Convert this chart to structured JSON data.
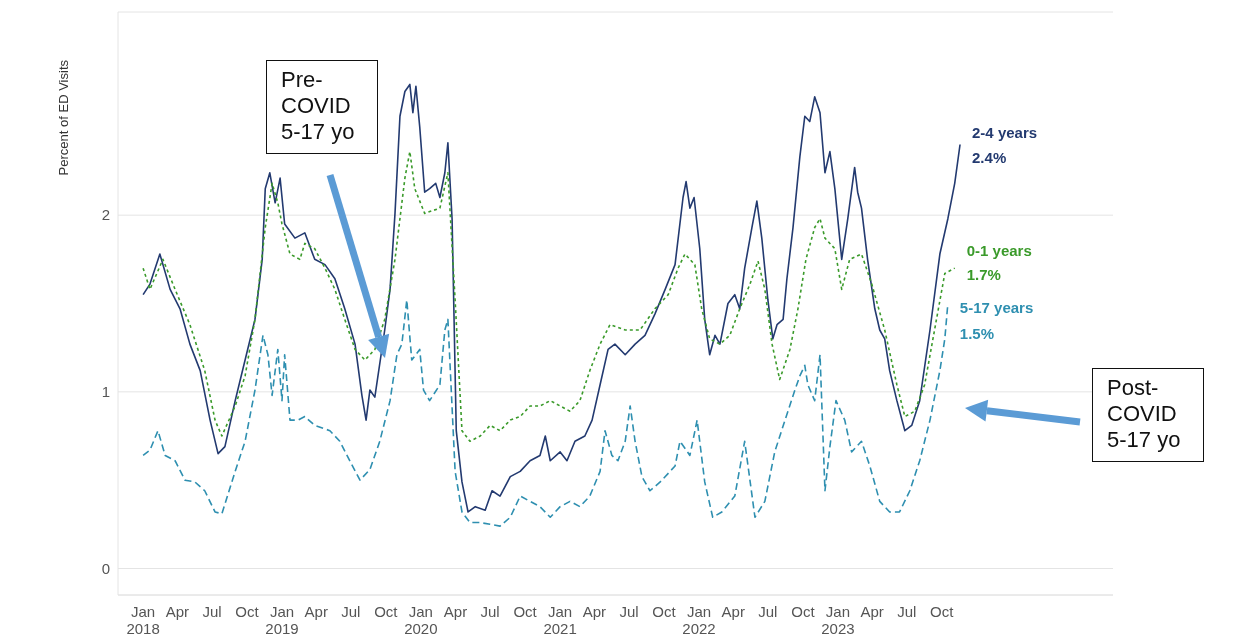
{
  "chart_data": {
    "type": "line",
    "ylabel": "Percent of ED Visits",
    "xlim": [
      "2017-10-27",
      "2024-12-24"
    ],
    "xticks": [
      {
        "value": "2018-01-01",
        "label": "Jan 2018"
      },
      {
        "value": "2018-04-01",
        "label": "Apr"
      },
      {
        "value": "2018-07-01",
        "label": "Jul"
      },
      {
        "value": "2018-10-01",
        "label": "Oct"
      },
      {
        "value": "2019-01-01",
        "label": "Jan 2019"
      },
      {
        "value": "2019-04-01",
        "label": "Apr"
      },
      {
        "value": "2019-07-01",
        "label": "Jul"
      },
      {
        "value": "2019-10-01",
        "label": "Oct"
      },
      {
        "value": "2020-01-01",
        "label": "Jan 2020"
      },
      {
        "value": "2020-04-01",
        "label": "Apr"
      },
      {
        "value": "2020-07-01",
        "label": "Jul"
      },
      {
        "value": "2020-10-01",
        "label": "Oct"
      },
      {
        "value": "2021-01-01",
        "label": "Jan 2021"
      },
      {
        "value": "2021-04-01",
        "label": "Apr"
      },
      {
        "value": "2021-07-01",
        "label": "Jul"
      },
      {
        "value": "2021-10-01",
        "label": "Oct"
      },
      {
        "value": "2022-01-01",
        "label": "Jan 2022"
      },
      {
        "value": "2022-04-01",
        "label": "Apr"
      },
      {
        "value": "2022-07-01",
        "label": "Jul"
      },
      {
        "value": "2022-10-01",
        "label": "Oct"
      },
      {
        "value": "2023-01-01",
        "label": "Jan 2023"
      },
      {
        "value": "2023-04-01",
        "label": "Apr"
      },
      {
        "value": "2023-07-01",
        "label": "Jul"
      },
      {
        "value": "2023-10-01",
        "label": "Oct"
      }
    ],
    "ylim": [
      -0.15,
      3.15
    ],
    "yticks": [
      0,
      1,
      2
    ],
    "grid": "y",
    "marker": "none",
    "series": [
      {
        "name": "2-4 years",
        "color": "#233a70",
        "line_style": "solid",
        "x": [
          "2018-01-01",
          "2018-01-19",
          "2018-02-14",
          "2018-03-13",
          "2018-04-08",
          "2018-05-04",
          "2018-05-31",
          "2018-06-26",
          "2018-07-17",
          "2018-08-04",
          "2018-08-31",
          "2018-09-26",
          "2018-10-22",
          "2018-11-10",
          "2018-11-18",
          "2018-11-30",
          "2018-12-14",
          "2018-12-27",
          "2019-01-08",
          "2019-02-04",
          "2019-03-02",
          "2019-03-28",
          "2019-04-24",
          "2019-05-20",
          "2019-06-15",
          "2019-07-12",
          "2019-07-30",
          "2019-08-10",
          "2019-08-20",
          "2019-09-02",
          "2019-09-28",
          "2019-10-12",
          "2019-10-25",
          "2019-11-07",
          "2019-11-20",
          "2019-12-03",
          "2019-12-11",
          "2019-12-19",
          "2019-12-29",
          "2020-01-11",
          "2020-01-24",
          "2020-02-09",
          "2020-02-20",
          "2020-03-04",
          "2020-03-12",
          "2020-03-23",
          "2020-04-03",
          "2020-04-18",
          "2020-05-04",
          "2020-05-23",
          "2020-06-18",
          "2020-07-06",
          "2020-07-27",
          "2020-08-23",
          "2020-09-18",
          "2020-10-14",
          "2020-11-09",
          "2020-11-23",
          "2020-12-06",
          "2021-01-01",
          "2021-01-19",
          "2021-02-09",
          "2021-03-07",
          "2021-03-26",
          "2021-04-16",
          "2021-05-07",
          "2021-05-25",
          "2021-06-21",
          "2021-07-17",
          "2021-08-12",
          "2021-09-07",
          "2021-10-04",
          "2021-10-30",
          "2021-11-20",
          "2021-11-28",
          "2021-12-08",
          "2021-12-19",
          "2022-01-03",
          "2022-01-16",
          "2022-01-29",
          "2022-02-12",
          "2022-02-25",
          "2022-03-18",
          "2022-04-05",
          "2022-04-18",
          "2022-05-01",
          "2022-05-20",
          "2022-06-02",
          "2022-06-15",
          "2022-07-01",
          "2022-07-14",
          "2022-07-25",
          "2022-08-10",
          "2022-08-20",
          "2022-09-05",
          "2022-09-23",
          "2022-10-06",
          "2022-10-19",
          "2022-11-01",
          "2022-11-15",
          "2022-11-28",
          "2022-12-11",
          "2022-12-24",
          "2023-01-11",
          "2023-01-27",
          "2023-02-14",
          "2023-02-22",
          "2023-03-04",
          "2023-03-20",
          "2023-04-08",
          "2023-04-21",
          "2023-05-04",
          "2023-05-17",
          "2023-06-05",
          "2023-06-26",
          "2023-07-14",
          "2023-08-04",
          "2023-08-31",
          "2023-09-26",
          "2023-10-17",
          "2023-11-04",
          "2023-11-18"
        ],
        "values": [
          1.55,
          1.61,
          1.78,
          1.58,
          1.47,
          1.27,
          1.12,
          0.84,
          0.65,
          0.69,
          0.95,
          1.18,
          1.41,
          1.75,
          2.15,
          2.24,
          2.07,
          2.21,
          1.95,
          1.87,
          1.9,
          1.75,
          1.72,
          1.64,
          1.47,
          1.27,
          0.98,
          0.84,
          1.01,
          0.97,
          1.35,
          1.58,
          2.01,
          2.56,
          2.7,
          2.74,
          2.58,
          2.73,
          2.5,
          2.13,
          2.15,
          2.18,
          2.1,
          2.24,
          2.41,
          1.98,
          0.78,
          0.49,
          0.32,
          0.35,
          0.33,
          0.44,
          0.41,
          0.52,
          0.55,
          0.61,
          0.64,
          0.75,
          0.61,
          0.66,
          0.61,
          0.72,
          0.75,
          0.84,
          1.04,
          1.24,
          1.27,
          1.21,
          1.27,
          1.32,
          1.44,
          1.58,
          1.72,
          2.1,
          2.19,
          2.04,
          2.1,
          1.81,
          1.41,
          1.21,
          1.32,
          1.27,
          1.5,
          1.55,
          1.47,
          1.7,
          1.93,
          2.08,
          1.87,
          1.52,
          1.3,
          1.38,
          1.41,
          1.64,
          1.93,
          2.33,
          2.56,
          2.53,
          2.67,
          2.58,
          2.24,
          2.36,
          2.15,
          1.75,
          1.98,
          2.27,
          2.13,
          2.04,
          1.75,
          1.47,
          1.35,
          1.3,
          1.12,
          0.95,
          0.78,
          0.81,
          0.95,
          1.35,
          1.78,
          1.98,
          2.18,
          2.4
        ]
      },
      {
        "name": "0-1 years",
        "color": "#3a9a2a",
        "line_style": "dotted",
        "x": [
          "2018-01-01",
          "2018-01-19",
          "2018-02-22",
          "2018-03-26",
          "2018-05-04",
          "2018-06-12",
          "2018-07-09",
          "2018-07-27",
          "2018-08-31",
          "2018-09-26",
          "2018-10-22",
          "2018-11-18",
          "2018-12-06",
          "2018-12-21",
          "2019-01-01",
          "2019-01-22",
          "2019-02-17",
          "2019-03-02",
          "2019-03-28",
          "2019-04-24",
          "2019-05-20",
          "2019-06-15",
          "2019-07-12",
          "2019-08-07",
          "2019-09-02",
          "2019-09-28",
          "2019-10-25",
          "2019-11-20",
          "2019-12-03",
          "2019-12-16",
          "2020-01-11",
          "2020-02-20",
          "2020-03-12",
          "2020-03-31",
          "2020-04-18",
          "2020-05-09",
          "2020-06-05",
          "2020-07-01",
          "2020-07-27",
          "2020-08-23",
          "2020-09-18",
          "2020-10-14",
          "2020-11-09",
          "2020-12-06",
          "2021-01-01",
          "2021-01-27",
          "2021-02-22",
          "2021-03-20",
          "2021-04-16",
          "2021-05-12",
          "2021-06-21",
          "2021-07-30",
          "2021-09-07",
          "2021-10-12",
          "2021-11-07",
          "2021-11-25",
          "2021-12-21",
          "2022-01-08",
          "2022-01-29",
          "2022-02-25",
          "2022-03-23",
          "2022-04-18",
          "2022-05-15",
          "2022-06-05",
          "2022-06-23",
          "2022-07-12",
          "2022-08-01",
          "2022-08-28",
          "2022-09-18",
          "2022-10-09",
          "2022-11-01",
          "2022-11-15",
          "2022-11-28",
          "2022-12-24",
          "2023-01-11",
          "2023-02-01",
          "2023-03-04",
          "2023-03-31",
          "2023-05-04",
          "2023-06-05",
          "2023-06-26",
          "2023-07-22",
          "2023-08-17",
          "2023-09-12",
          "2023-10-09",
          "2023-11-04"
        ],
        "values": [
          1.7,
          1.58,
          1.75,
          1.58,
          1.38,
          1.12,
          0.84,
          0.75,
          0.92,
          1.09,
          1.41,
          1.93,
          2.18,
          2.07,
          1.95,
          1.78,
          1.75,
          1.84,
          1.81,
          1.7,
          1.58,
          1.41,
          1.24,
          1.18,
          1.24,
          1.41,
          1.75,
          2.21,
          2.36,
          2.15,
          2.01,
          2.04,
          2.24,
          1.52,
          0.78,
          0.72,
          0.75,
          0.81,
          0.78,
          0.84,
          0.86,
          0.92,
          0.92,
          0.95,
          0.92,
          0.89,
          0.95,
          1.12,
          1.27,
          1.38,
          1.35,
          1.35,
          1.47,
          1.55,
          1.7,
          1.78,
          1.72,
          1.47,
          1.3,
          1.27,
          1.32,
          1.47,
          1.61,
          1.74,
          1.58,
          1.27,
          1.07,
          1.24,
          1.47,
          1.75,
          1.93,
          1.98,
          1.87,
          1.81,
          1.58,
          1.75,
          1.78,
          1.61,
          1.35,
          1.04,
          0.86,
          0.89,
          1.04,
          1.35,
          1.67,
          1.7
        ]
      },
      {
        "name": "5-17 years",
        "color": "#2e8fb0",
        "line_style": "dashed",
        "x": [
          "2018-01-01",
          "2018-01-19",
          "2018-02-09",
          "2018-02-28",
          "2018-03-26",
          "2018-04-21",
          "2018-05-17",
          "2018-06-12",
          "2018-07-09",
          "2018-07-27",
          "2018-08-31",
          "2018-09-26",
          "2018-10-22",
          "2018-11-12",
          "2018-11-25",
          "2018-12-06",
          "2018-12-21",
          "2019-01-01",
          "2019-01-08",
          "2019-01-22",
          "2019-02-12",
          "2019-03-02",
          "2019-03-28",
          "2019-05-07",
          "2019-06-02",
          "2019-06-28",
          "2019-07-25",
          "2019-08-20",
          "2019-09-15",
          "2019-10-12",
          "2019-10-30",
          "2019-11-12",
          "2019-11-25",
          "2019-12-08",
          "2019-12-29",
          "2020-01-08",
          "2020-01-24",
          "2020-02-20",
          "2020-03-04",
          "2020-03-12",
          "2020-03-31",
          "2020-04-18",
          "2020-05-09",
          "2020-06-05",
          "2020-07-01",
          "2020-07-27",
          "2020-08-23",
          "2020-09-18",
          "2020-10-14",
          "2020-11-09",
          "2020-12-06",
          "2021-01-01",
          "2021-01-27",
          "2021-02-22",
          "2021-03-20",
          "2021-04-16",
          "2021-04-29",
          "2021-05-17",
          "2021-06-02",
          "2021-06-21",
          "2021-07-04",
          "2021-07-17",
          "2021-08-04",
          "2021-08-25",
          "2021-09-21",
          "2021-10-17",
          "2021-10-30",
          "2021-11-12",
          "2021-12-08",
          "2021-12-27",
          "2022-01-16",
          "2022-02-06",
          "2022-03-02",
          "2022-04-05",
          "2022-05-01",
          "2022-05-28",
          "2022-06-23",
          "2022-07-19",
          "2022-08-15",
          "2022-09-10",
          "2022-09-23",
          "2022-10-06",
          "2022-10-14",
          "2022-11-01",
          "2022-11-15",
          "2022-11-28",
          "2022-12-11",
          "2022-12-27",
          "2023-01-19",
          "2023-02-06",
          "2023-03-04",
          "2023-03-26",
          "2023-04-21",
          "2023-05-17",
          "2023-06-12",
          "2023-07-09",
          "2023-08-04",
          "2023-08-31",
          "2023-09-26",
          "2023-10-09",
          "2023-10-17"
        ],
        "values": [
          0.64,
          0.67,
          0.78,
          0.64,
          0.61,
          0.5,
          0.49,
          0.44,
          0.32,
          0.31,
          0.55,
          0.72,
          1.01,
          1.32,
          1.21,
          0.98,
          1.24,
          0.95,
          1.21,
          0.84,
          0.84,
          0.86,
          0.81,
          0.78,
          0.72,
          0.61,
          0.5,
          0.56,
          0.72,
          0.95,
          1.21,
          1.27,
          1.52,
          1.18,
          1.24,
          1.01,
          0.95,
          1.04,
          1.35,
          1.41,
          0.55,
          0.32,
          0.26,
          0.26,
          0.25,
          0.24,
          0.29,
          0.41,
          0.38,
          0.35,
          0.29,
          0.35,
          0.38,
          0.35,
          0.41,
          0.55,
          0.78,
          0.64,
          0.61,
          0.72,
          0.92,
          0.72,
          0.52,
          0.44,
          0.49,
          0.55,
          0.58,
          0.72,
          0.64,
          0.84,
          0.49,
          0.29,
          0.32,
          0.41,
          0.72,
          0.29,
          0.38,
          0.66,
          0.84,
          1.01,
          1.09,
          1.15,
          1.04,
          0.95,
          1.21,
          0.44,
          0.69,
          0.95,
          0.84,
          0.66,
          0.72,
          0.58,
          0.38,
          0.32,
          0.32,
          0.44,
          0.61,
          0.84,
          1.12,
          1.3,
          1.5
        ]
      }
    ],
    "annotations": [
      {
        "text": "2.4%",
        "x": "2023-11-18",
        "y": 2.4
      },
      {
        "text": "1.7%",
        "x": "2023-11-04",
        "y": 1.7
      },
      {
        "text": "1.5%",
        "x": "2023-10-17",
        "y": 1.5
      },
      "Pre-COVID 5-17 yo",
      "Post-COVID 5-17 yo"
    ]
  }
}
